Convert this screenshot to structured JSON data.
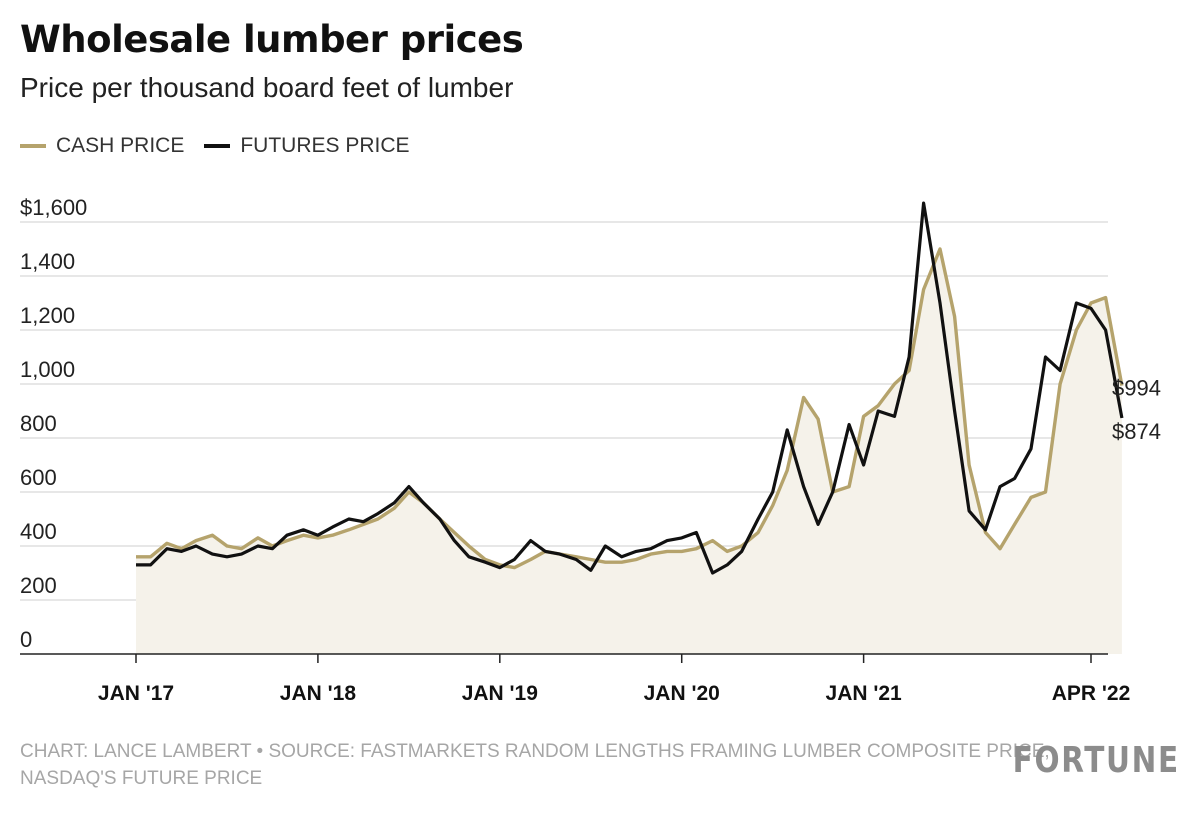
{
  "chart_data": {
    "type": "line",
    "title": "Wholesale lumber prices",
    "subtitle": "Price per thousand board feet of lumber",
    "ylim": [
      0,
      1600
    ],
    "yticks": [
      0,
      200,
      400,
      600,
      800,
      1000,
      1200,
      1400,
      1600
    ],
    "ytick_labels": [
      "0",
      "200",
      "400",
      "600",
      "800",
      "1,000",
      "1,200",
      "1,400",
      "$1,600"
    ],
    "xlim": [
      2017.0,
      2022.25
    ],
    "xticks": [
      2017.0,
      2018.0,
      2019.0,
      2020.0,
      2021.0,
      2022.25
    ],
    "xtick_labels": [
      "JAN '17",
      "JAN '18",
      "JAN '19",
      "JAN '20",
      "JAN '21",
      "APR '22"
    ],
    "grid": true,
    "legend": "top-left",
    "series": [
      {
        "name": "CASH PRICE",
        "color": "#b5a36c",
        "end_label": "$994",
        "points": [
          [
            2017.0,
            360
          ],
          [
            2017.08,
            360
          ],
          [
            2017.17,
            410
          ],
          [
            2017.25,
            390
          ],
          [
            2017.33,
            420
          ],
          [
            2017.42,
            440
          ],
          [
            2017.5,
            400
          ],
          [
            2017.58,
            390
          ],
          [
            2017.67,
            430
          ],
          [
            2017.75,
            400
          ],
          [
            2017.83,
            420
          ],
          [
            2017.92,
            440
          ],
          [
            2018.0,
            430
          ],
          [
            2018.08,
            440
          ],
          [
            2018.17,
            460
          ],
          [
            2018.25,
            480
          ],
          [
            2018.33,
            500
          ],
          [
            2018.42,
            540
          ],
          [
            2018.5,
            600
          ],
          [
            2018.58,
            560
          ],
          [
            2018.67,
            500
          ],
          [
            2018.75,
            450
          ],
          [
            2018.83,
            400
          ],
          [
            2018.92,
            350
          ],
          [
            2019.0,
            330
          ],
          [
            2019.08,
            320
          ],
          [
            2019.17,
            350
          ],
          [
            2019.25,
            380
          ],
          [
            2019.33,
            370
          ],
          [
            2019.42,
            360
          ],
          [
            2019.5,
            350
          ],
          [
            2019.58,
            340
          ],
          [
            2019.67,
            340
          ],
          [
            2019.75,
            350
          ],
          [
            2019.83,
            370
          ],
          [
            2019.92,
            380
          ],
          [
            2020.0,
            380
          ],
          [
            2020.08,
            390
          ],
          [
            2020.17,
            420
          ],
          [
            2020.25,
            380
          ],
          [
            2020.33,
            400
          ],
          [
            2020.42,
            450
          ],
          [
            2020.5,
            550
          ],
          [
            2020.58,
            680
          ],
          [
            2020.67,
            950
          ],
          [
            2020.75,
            870
          ],
          [
            2020.83,
            600
          ],
          [
            2020.92,
            620
          ],
          [
            2021.0,
            880
          ],
          [
            2021.08,
            920
          ],
          [
            2021.17,
            1000
          ],
          [
            2021.25,
            1050
          ],
          [
            2021.33,
            1350
          ],
          [
            2021.42,
            1500
          ],
          [
            2021.5,
            1250
          ],
          [
            2021.58,
            700
          ],
          [
            2021.67,
            450
          ],
          [
            2021.75,
            390
          ],
          [
            2021.83,
            480
          ],
          [
            2021.92,
            580
          ],
          [
            2022.0,
            600
          ],
          [
            2022.08,
            1000
          ],
          [
            2022.17,
            1200
          ],
          [
            2022.25,
            1300
          ],
          [
            2022.33,
            1320
          ],
          [
            2022.42,
            994
          ]
        ]
      },
      {
        "name": "FUTURES PRICE",
        "color": "#111111",
        "end_label": "$874",
        "points": [
          [
            2017.0,
            330
          ],
          [
            2017.08,
            330
          ],
          [
            2017.17,
            390
          ],
          [
            2017.25,
            380
          ],
          [
            2017.33,
            400
          ],
          [
            2017.42,
            370
          ],
          [
            2017.5,
            360
          ],
          [
            2017.58,
            370
          ],
          [
            2017.67,
            400
          ],
          [
            2017.75,
            390
          ],
          [
            2017.83,
            440
          ],
          [
            2017.92,
            460
          ],
          [
            2018.0,
            440
          ],
          [
            2018.08,
            470
          ],
          [
            2018.17,
            500
          ],
          [
            2018.25,
            490
          ],
          [
            2018.33,
            520
          ],
          [
            2018.42,
            560
          ],
          [
            2018.5,
            620
          ],
          [
            2018.58,
            560
          ],
          [
            2018.67,
            500
          ],
          [
            2018.75,
            420
          ],
          [
            2018.83,
            360
          ],
          [
            2018.92,
            340
          ],
          [
            2019.0,
            320
          ],
          [
            2019.08,
            350
          ],
          [
            2019.17,
            420
          ],
          [
            2019.25,
            380
          ],
          [
            2019.33,
            370
          ],
          [
            2019.42,
            350
          ],
          [
            2019.5,
            310
          ],
          [
            2019.58,
            400
          ],
          [
            2019.67,
            360
          ],
          [
            2019.75,
            380
          ],
          [
            2019.83,
            390
          ],
          [
            2019.92,
            420
          ],
          [
            2020.0,
            430
          ],
          [
            2020.08,
            450
          ],
          [
            2020.17,
            300
          ],
          [
            2020.25,
            330
          ],
          [
            2020.33,
            380
          ],
          [
            2020.42,
            500
          ],
          [
            2020.5,
            600
          ],
          [
            2020.58,
            830
          ],
          [
            2020.67,
            620
          ],
          [
            2020.75,
            480
          ],
          [
            2020.83,
            600
          ],
          [
            2020.92,
            850
          ],
          [
            2021.0,
            700
          ],
          [
            2021.08,
            900
          ],
          [
            2021.17,
            880
          ],
          [
            2021.25,
            1100
          ],
          [
            2021.33,
            1670
          ],
          [
            2021.42,
            1300
          ],
          [
            2021.5,
            900
          ],
          [
            2021.58,
            530
          ],
          [
            2021.67,
            460
          ],
          [
            2021.75,
            620
          ],
          [
            2021.83,
            650
          ],
          [
            2021.92,
            760
          ],
          [
            2022.0,
            1100
          ],
          [
            2022.08,
            1050
          ],
          [
            2022.17,
            1300
          ],
          [
            2022.25,
            1280
          ],
          [
            2022.33,
            1200
          ],
          [
            2022.42,
            874
          ]
        ]
      }
    ]
  },
  "footer": {
    "credit": "CHART: LANCE LAMBERT • SOURCE: FASTMARKETS RANDOM LENGTHS FRAMING LUMBER COMPOSITE PRICE; NASDAQ'S FUTURE PRICE",
    "logo": "FORTUNE"
  }
}
